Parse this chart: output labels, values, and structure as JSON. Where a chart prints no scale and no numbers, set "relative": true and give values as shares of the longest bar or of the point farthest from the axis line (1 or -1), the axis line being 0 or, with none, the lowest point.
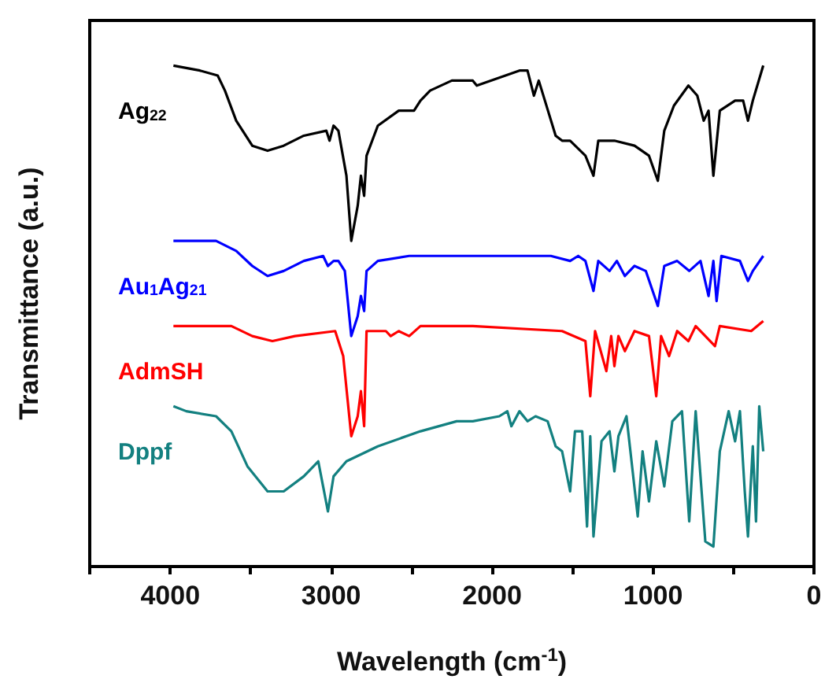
{
  "chart_data": {
    "type": "line",
    "xlabel": "Wavelength (cm$^{-1}$)",
    "ylabel": "Transmittance (a.u.)",
    "relative": true,
    "tick_labels": "x",
    "marker": "none",
    "xlim": [
      4500,
      0
    ],
    "xticks": [
      {
        "value": 4500,
        "label": null
      },
      4000,
      {
        "value": 3500,
        "label": null
      },
      3000,
      {
        "value": 2500,
        "label": null
      },
      2000,
      {
        "value": 1500,
        "label": null
      },
      1000,
      {
        "value": 500,
        "label": null
      },
      0
    ],
    "series": [
      {
        "name": "Ag$_{22}$",
        "color": "#000000",
        "x": [
          3980,
          3815,
          3705,
          3660,
          3590,
          3490,
          3395,
          3295,
          3170,
          3030,
          3010,
          2985,
          2955,
          2905,
          2875,
          2835,
          2815,
          2795,
          2780,
          2710,
          2580,
          2485,
          2445,
          2385,
          2250,
          2120,
          2095,
          1830,
          1780,
          1740,
          1710,
          1605,
          1565,
          1515,
          1420,
          1370,
          1340,
          1240,
          1115,
          1025,
          970,
          930,
          870,
          780,
          725,
          685,
          655,
          625,
          585,
          490,
          440,
          410,
          380,
          315
        ],
        "values": [
          1.0,
          0.99,
          0.98,
          0.95,
          0.89,
          0.84,
          0.83,
          0.84,
          0.86,
          0.87,
          0.85,
          0.88,
          0.87,
          0.78,
          0.65,
          0.72,
          0.78,
          0.74,
          0.82,
          0.88,
          0.91,
          0.91,
          0.93,
          0.95,
          0.97,
          0.97,
          0.96,
          0.99,
          0.99,
          0.94,
          0.97,
          0.86,
          0.85,
          0.85,
          0.82,
          0.78,
          0.85,
          0.85,
          0.84,
          0.82,
          0.77,
          0.87,
          0.92,
          0.96,
          0.94,
          0.89,
          0.91,
          0.78,
          0.91,
          0.93,
          0.93,
          0.89,
          0.93,
          1.0
        ]
      },
      {
        "name": "Au$_{1}$Ag$_{21}$",
        "color": "#0000ff",
        "x": [
          3980,
          3715,
          3590,
          3490,
          3395,
          3295,
          3170,
          3050,
          3020,
          2985,
          2955,
          2915,
          2875,
          2835,
          2815,
          2795,
          2780,
          2710,
          2515,
          2220,
          1635,
          1515,
          1465,
          1420,
          1370,
          1340,
          1270,
          1225,
          1175,
          1115,
          1045,
          970,
          930,
          850,
          775,
          705,
          655,
          625,
          605,
          575,
          460,
          410,
          380,
          315
        ],
        "values": [
          0.65,
          0.65,
          0.63,
          0.6,
          0.58,
          0.59,
          0.61,
          0.62,
          0.6,
          0.61,
          0.61,
          0.59,
          0.46,
          0.5,
          0.54,
          0.51,
          0.59,
          0.61,
          0.62,
          0.62,
          0.62,
          0.61,
          0.62,
          0.61,
          0.55,
          0.61,
          0.59,
          0.61,
          0.58,
          0.6,
          0.59,
          0.52,
          0.6,
          0.61,
          0.59,
          0.61,
          0.54,
          0.61,
          0.53,
          0.62,
          0.61,
          0.57,
          0.59,
          0.62
        ]
      },
      {
        "name": "AdmSH",
        "color": "#ff0000",
        "x": [
          3980,
          3620,
          3490,
          3365,
          3225,
          2975,
          2925,
          2875,
          2835,
          2815,
          2795,
          2780,
          2660,
          2630,
          2580,
          2515,
          2445,
          2220,
          2120,
          1565,
          1420,
          1390,
          1360,
          1290,
          1260,
          1240,
          1215,
          1175,
          1115,
          1025,
          980,
          950,
          900,
          850,
          780,
          735,
          675,
          615,
          585,
          390,
          315
        ],
        "values": [
          0.48,
          0.48,
          0.46,
          0.45,
          0.46,
          0.47,
          0.42,
          0.26,
          0.3,
          0.35,
          0.28,
          0.47,
          0.47,
          0.46,
          0.47,
          0.46,
          0.48,
          0.48,
          0.48,
          0.47,
          0.45,
          0.34,
          0.47,
          0.39,
          0.46,
          0.4,
          0.46,
          0.43,
          0.47,
          0.46,
          0.34,
          0.46,
          0.42,
          0.47,
          0.45,
          0.48,
          0.46,
          0.44,
          0.48,
          0.47,
          0.49
        ]
      },
      {
        "name": "Dppf",
        "color": "#138080",
        "x": [
          3980,
          3900,
          3715,
          3620,
          3520,
          3395,
          3295,
          3170,
          3080,
          3050,
          3020,
          2985,
          2905,
          2710,
          2445,
          2220,
          2120,
          1955,
          1905,
          1880,
          1830,
          1780,
          1730,
          1655,
          1605,
          1565,
          1515,
          1485,
          1440,
          1410,
          1390,
          1370,
          1320,
          1270,
          1240,
          1215,
          1165,
          1095,
          1065,
          1025,
          980,
          930,
          880,
          820,
          775,
          735,
          675,
          625,
          585,
          530,
          490,
          460,
          430,
          410,
          380,
          360,
          340,
          315
        ],
        "values": [
          0.32,
          0.31,
          0.3,
          0.27,
          0.2,
          0.15,
          0.15,
          0.18,
          0.21,
          0.16,
          0.11,
          0.18,
          0.21,
          0.24,
          0.27,
          0.29,
          0.29,
          0.3,
          0.31,
          0.28,
          0.31,
          0.29,
          0.3,
          0.29,
          0.24,
          0.23,
          0.15,
          0.27,
          0.27,
          0.08,
          0.26,
          0.06,
          0.25,
          0.27,
          0.19,
          0.26,
          0.3,
          0.1,
          0.23,
          0.13,
          0.25,
          0.16,
          0.29,
          0.31,
          0.09,
          0.31,
          0.05,
          0.04,
          0.23,
          0.31,
          0.25,
          0.31,
          0.15,
          0.06,
          0.24,
          0.09,
          0.32,
          0.23
        ]
      }
    ]
  }
}
